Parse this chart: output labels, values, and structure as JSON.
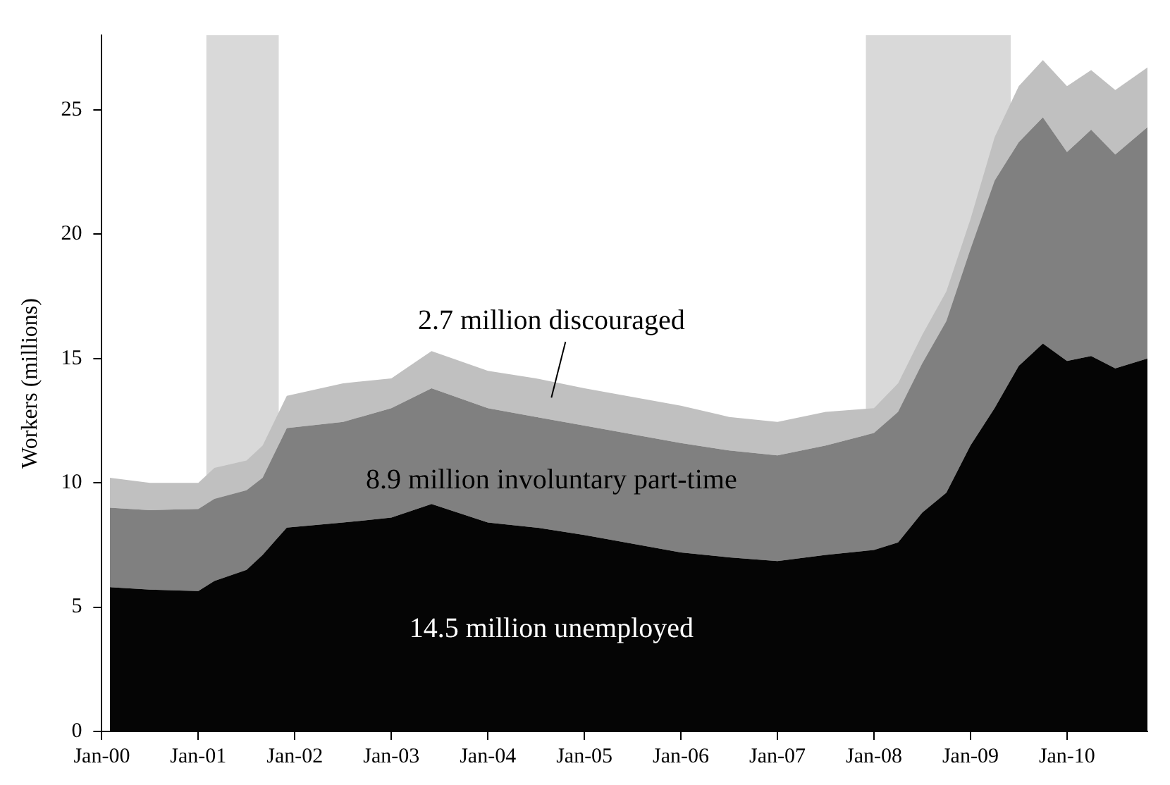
{
  "chart_data": {
    "type": "area",
    "stacked": true,
    "ylabel": "Workers (millions)",
    "x": [
      "2000-02",
      "2000-07",
      "2001-01",
      "2001-03",
      "2001-07",
      "2001-09",
      "2001-12",
      "2002-07",
      "2003-01",
      "2003-06",
      "2004-01",
      "2004-07",
      "2005-01",
      "2006-01",
      "2006-07",
      "2007-01",
      "2007-07",
      "2008-01",
      "2008-04",
      "2008-07",
      "2008-10",
      "2009-01",
      "2009-04",
      "2009-07",
      "2009-10",
      "2010-01",
      "2010-04",
      "2010-07",
      "2010-11"
    ],
    "series": [
      {
        "color": "#050505",
        "values": [
          5.8,
          5.7,
          5.65,
          6.05,
          6.5,
          7.1,
          8.2,
          8.4,
          8.6,
          9.15,
          8.4,
          8.2,
          7.9,
          7.2,
          7.0,
          6.85,
          7.1,
          7.3,
          7.6,
          8.8,
          9.6,
          11.5,
          13.0,
          14.7,
          15.6,
          14.9,
          15.1,
          14.6,
          15.0
        ]
      },
      {
        "color": "#808080",
        "values": [
          3.2,
          3.2,
          3.3,
          3.3,
          3.2,
          3.1,
          4.0,
          4.05,
          4.4,
          4.65,
          4.6,
          4.45,
          4.4,
          4.4,
          4.3,
          4.25,
          4.4,
          4.7,
          5.25,
          6.0,
          6.9,
          7.9,
          9.15,
          9.0,
          9.1,
          8.4,
          9.1,
          8.6,
          9.3
        ]
      },
      {
        "color": "#c0c0c0",
        "values": [
          1.2,
          1.1,
          1.05,
          1.25,
          1.2,
          1.3,
          1.3,
          1.55,
          1.2,
          1.5,
          1.5,
          1.55,
          1.5,
          1.5,
          1.35,
          1.35,
          1.35,
          1.0,
          1.15,
          1.15,
          1.2,
          1.2,
          1.75,
          2.25,
          2.3,
          2.65,
          2.4,
          2.6,
          2.4
        ]
      }
    ],
    "xlim": [
      "2000-01",
      "2010-11"
    ],
    "xticks": [
      {
        "value": "2000-01",
        "label": "Jan-00"
      },
      {
        "value": "2001-01",
        "label": "Jan-01"
      },
      {
        "value": "2002-01",
        "label": "Jan-02"
      },
      {
        "value": "2003-01",
        "label": "Jan-03"
      },
      {
        "value": "2004-01",
        "label": "Jan-04"
      },
      {
        "value": "2005-01",
        "label": "Jan-05"
      },
      {
        "value": "2006-01",
        "label": "Jan-06"
      },
      {
        "value": "2007-01",
        "label": "Jan-07"
      },
      {
        "value": "2008-01",
        "label": "Jan-08"
      },
      {
        "value": "2009-01",
        "label": "Jan-09"
      },
      {
        "value": "2010-01",
        "label": "Jan-10"
      }
    ],
    "ylim": [
      0,
      28
    ],
    "yticks": [
      0,
      5,
      10,
      15,
      20,
      25
    ],
    "bands": [
      {
        "axis": "x",
        "from": "2001-02",
        "to": "2001-11",
        "color": "#d9d9d9"
      },
      {
        "axis": "x",
        "from": "2007-12",
        "to": "2009-06",
        "color": "#d9d9d9"
      }
    ],
    "annotations": [
      "2.7 million discouraged",
      "8.9 million involuntary part-time",
      "14.5 million unemployed"
    ],
    "grid": false,
    "legend": false
  }
}
